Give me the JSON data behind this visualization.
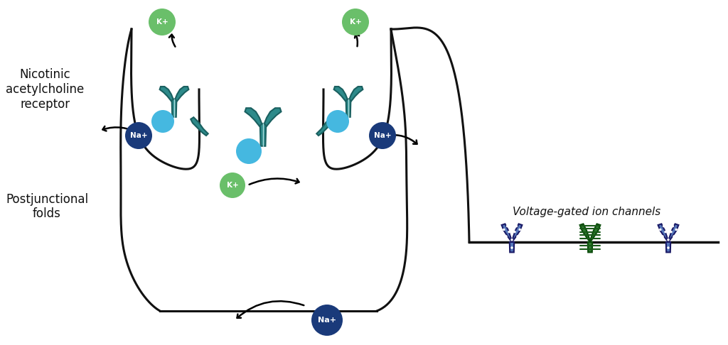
{
  "bg_color": "#ffffff",
  "teal": "#2d8a8a",
  "teal_dark": "#1a6060",
  "teal_light": "#3aadad",
  "blue_circle": "#1a3a7a",
  "cyan_circle": "#45b8e0",
  "green_circle": "#6abf6a",
  "blue_channel": "#5577bb",
  "green_channel": "#2d7a2d",
  "line_color": "#111111",
  "text_color": "#111111",
  "label_postjunctional": "Postjunctional\nfolds",
  "label_nicotinic": "Nicotinic\nacetylcholine\nreceptor",
  "label_voltage": "Voltage-gated ion channels",
  "na_label": "Na+",
  "k_label": "K+"
}
